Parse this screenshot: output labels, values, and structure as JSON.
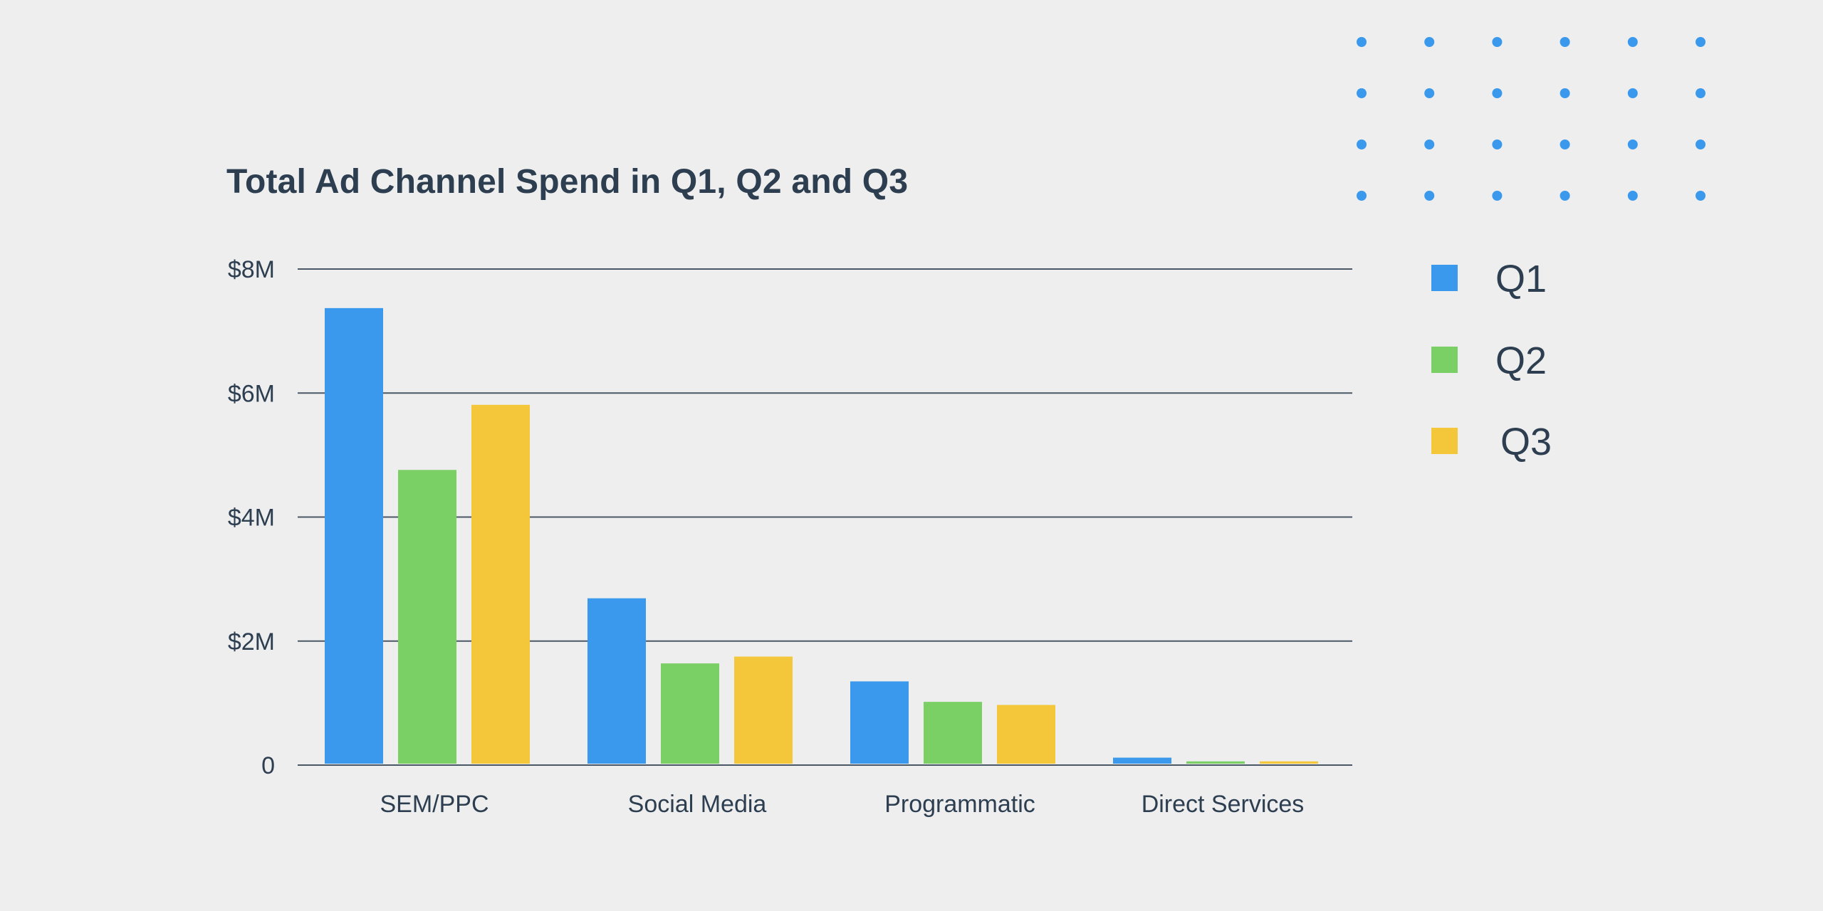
{
  "chart_data": {
    "type": "bar",
    "title": "Total Ad Channel Spend in Q1, Q2 and Q3",
    "xlabel": "",
    "ylabel": "",
    "categories": [
      "SEM/PPC",
      "Social Media",
      "Programmatic",
      "Direct Services"
    ],
    "series": [
      {
        "name": "Q1",
        "color": "#3a99ec",
        "values": [
          7.37,
          2.69,
          1.35,
          0.12
        ]
      },
      {
        "name": "Q2",
        "color": "#7acf65",
        "values": [
          4.76,
          1.64,
          1.02,
          0.06
        ]
      },
      {
        "name": "Q3",
        "color": "#f4c63a",
        "values": [
          5.81,
          1.75,
          0.97,
          0.06
        ]
      }
    ],
    "units": "$M",
    "ylim": [
      0,
      8
    ],
    "y_ticks": [
      {
        "value": 0,
        "label": "0"
      },
      {
        "value": 2,
        "label": "$2M"
      },
      {
        "value": 4,
        "label": "$4M"
      },
      {
        "value": 6,
        "label": "$6M"
      },
      {
        "value": 8,
        "label": "$8M"
      }
    ],
    "grid": true,
    "legend_position": "right"
  },
  "colors": {
    "background": "#eeeeee",
    "text": "#2c3e50",
    "grid": "#4a5866",
    "decor_dots": "#3a99ec"
  },
  "decoration": {
    "dot_grid_rows": 4,
    "dot_grid_cols": 6
  }
}
